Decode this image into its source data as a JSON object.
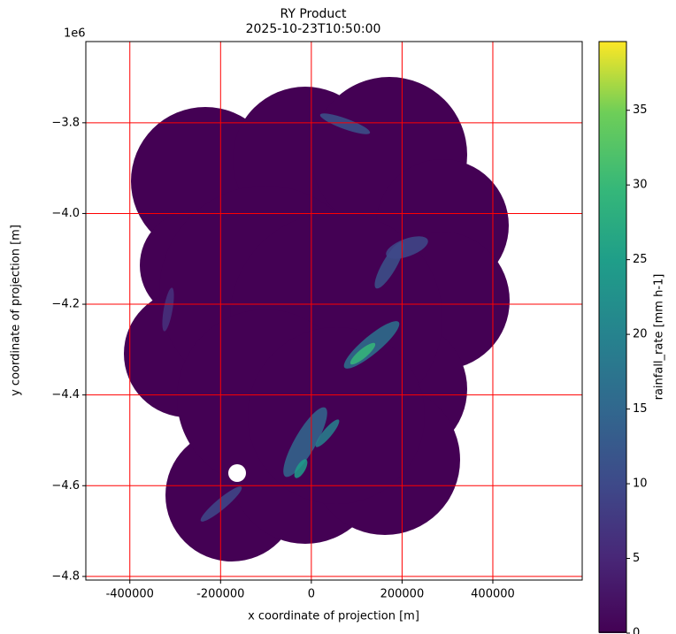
{
  "chart_data": {
    "type": "heatmap",
    "title": "RY Product",
    "subtitle": "2025-10-23T10:50:00",
    "x_label": "x coordinate of projection [m]",
    "y_label": "y coordinate of projection [m]",
    "y_offset_label": "1e6",
    "colorbar_label": "rainfall_rate [mm h-1]",
    "xlim": [
      -497000,
      597000
    ],
    "ylim": [
      -4808000,
      -3621000
    ],
    "xticks": [
      -400000,
      -200000,
      0,
      200000,
      400000
    ],
    "yticks": [
      {
        "value": -4800000,
        "label": "−4.8"
      },
      {
        "value": -4600000,
        "label": "−4.6"
      },
      {
        "value": -4400000,
        "label": "−4.4"
      },
      {
        "value": -4200000,
        "label": "−4.2"
      },
      {
        "value": -4000000,
        "label": "−4.0"
      },
      {
        "value": -3800000,
        "label": "−3.8"
      }
    ],
    "clim": [
      0,
      39.6
    ],
    "cticks": [
      0,
      5,
      10,
      15,
      20,
      25,
      30,
      35
    ],
    "colormap": "viridis",
    "grid": true,
    "grid_color": "#ff0000"
  }
}
